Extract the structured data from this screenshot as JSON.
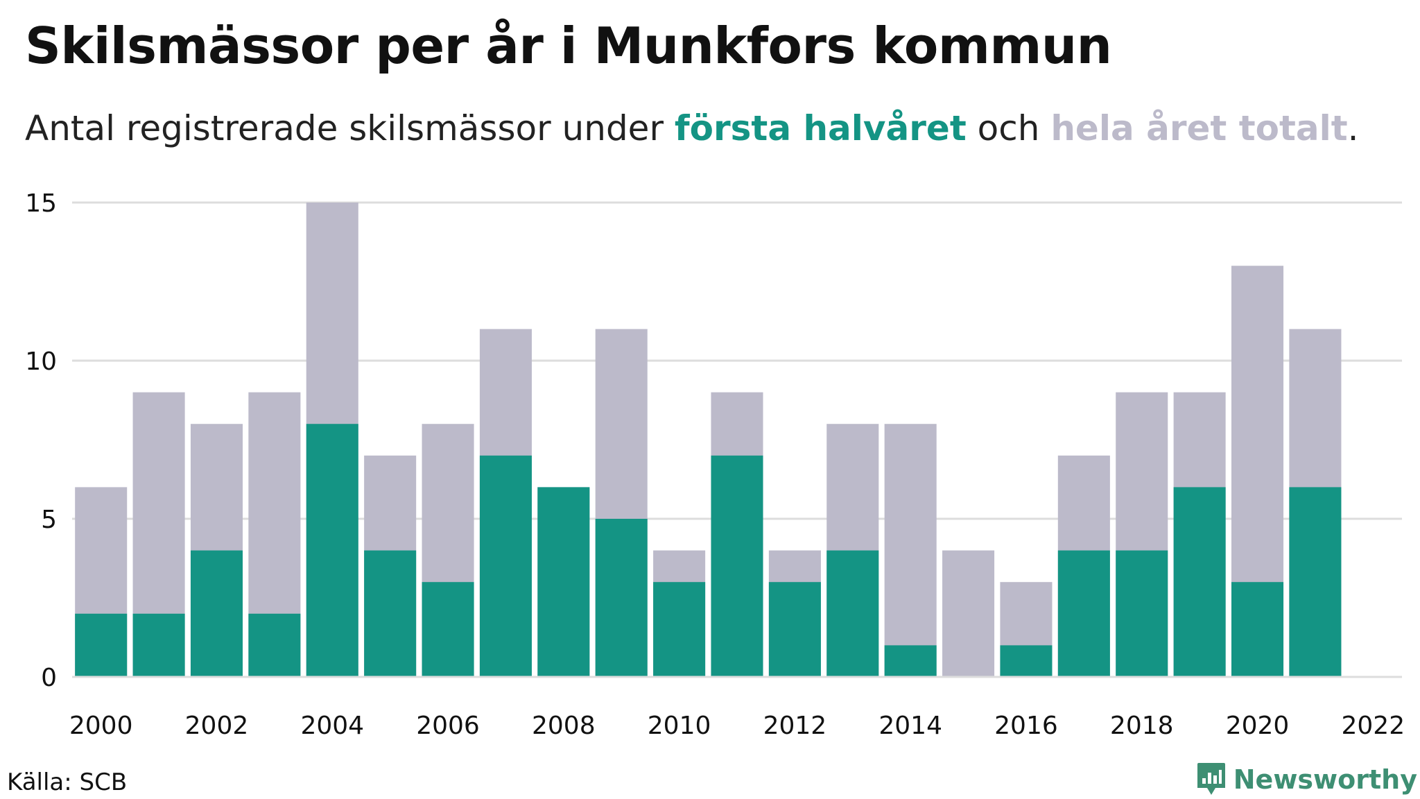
{
  "title": "Skilsmässor per år i Munkfors kommun",
  "subtitle": {
    "prefix": "Antal registrerade skilsmässor under ",
    "highlight_first": "första halvåret",
    "middle": " och ",
    "highlight_total": "hela året totalt",
    "suffix": "."
  },
  "colors": {
    "first_half": "#149484",
    "total": "#bcbaca",
    "grid": "#dddddd",
    "brand": "#3e8f73"
  },
  "chart_data": {
    "type": "bar",
    "stacked_overlay": true,
    "categories": [
      2000,
      2001,
      2002,
      2003,
      2004,
      2005,
      2006,
      2007,
      2008,
      2009,
      2010,
      2011,
      2012,
      2013,
      2014,
      2015,
      2016,
      2017,
      2018,
      2019,
      2020,
      2021
    ],
    "series": [
      {
        "key": "total",
        "values": [
          6,
          9,
          8,
          9,
          15,
          7,
          8,
          11,
          6,
          11,
          4,
          9,
          4,
          8,
          8,
          4,
          3,
          7,
          9,
          9,
          13,
          11
        ]
      },
      {
        "key": "first_half",
        "values": [
          2,
          2,
          4,
          2,
          8,
          4,
          3,
          7,
          6,
          5,
          3,
          7,
          3,
          4,
          1,
          0,
          1,
          4,
          4,
          6,
          3,
          6
        ]
      }
    ],
    "ylim": [
      0,
      15
    ],
    "yticks": [
      0,
      5,
      10,
      15
    ],
    "xlim": [
      1999.5,
      2022.5
    ],
    "xticks": [
      2000,
      2002,
      2004,
      2006,
      2008,
      2010,
      2012,
      2014,
      2016,
      2018,
      2020,
      2022
    ],
    "grid": true,
    "legend": "subtitle"
  },
  "footer": {
    "source": "Källa: SCB",
    "brand": "Newsworthy"
  }
}
